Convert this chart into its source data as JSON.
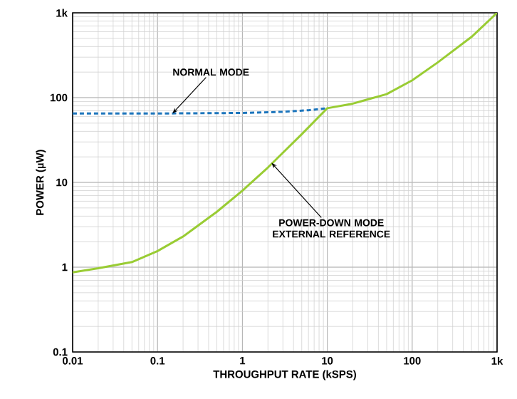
{
  "chart_data": {
    "type": "line",
    "xlabel": "THROUGHPUT RATE (kSPS)",
    "ylabel": "POWER (µW)",
    "log": "xy",
    "grid": true,
    "xlim": [
      0.01,
      1000
    ],
    "ylim": [
      0.1,
      1000
    ],
    "xticks": [
      0.01,
      0.1,
      1,
      10,
      100,
      {
        "value": 1000,
        "label": "1k"
      }
    ],
    "yticks": [
      0.1,
      1,
      10,
      100,
      {
        "value": 1000,
        "label": "1k"
      }
    ],
    "series": [
      {
        "color": "#1c75bc",
        "line_style": "dashed",
        "x": [
          0.01,
          0.1,
          1,
          3,
          6,
          10
        ],
        "values": [
          65,
          65,
          66,
          68,
          71,
          75
        ]
      },
      {
        "color": "#99cc33",
        "line_style": "solid",
        "x": [
          0.01,
          0.02,
          0.05,
          0.1,
          0.2,
          0.5,
          1,
          2,
          5,
          10,
          20,
          50,
          100,
          200,
          500,
          1000
        ],
        "values": [
          0.87,
          0.97,
          1.15,
          1.55,
          2.3,
          4.5,
          8,
          15,
          37,
          75,
          85,
          110,
          160,
          260,
          520,
          1000
        ]
      }
    ],
    "annotations": [
      {
        "text": "NORMAL MODE",
        "x": 0.15,
        "y": 65
      },
      {
        "text": "POWER-DOWN MODE EXTERNAL REFERENCE",
        "x": 2.2,
        "y": 17
      }
    ]
  }
}
